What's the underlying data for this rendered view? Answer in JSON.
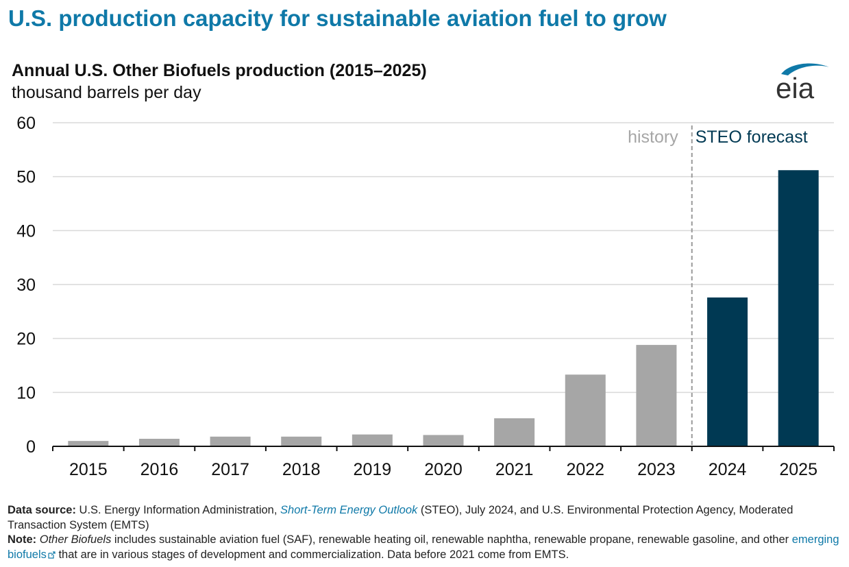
{
  "headline": "U.S. production capacity for sustainable aviation fuel to grow",
  "chart_data": {
    "type": "bar",
    "title": "Annual U.S. Other Biofuels production (2015–2025)",
    "subtitle": "thousand barrels per day",
    "categories": [
      "2015",
      "2016",
      "2017",
      "2018",
      "2019",
      "2020",
      "2021",
      "2022",
      "2023",
      "2024",
      "2025"
    ],
    "values": [
      1.0,
      1.4,
      1.8,
      1.8,
      2.2,
      2.1,
      5.2,
      13.3,
      18.8,
      27.6,
      51.2
    ],
    "ylim": [
      0,
      60
    ],
    "yticks": [
      "0",
      "10",
      "20",
      "30",
      "40",
      "50",
      "60"
    ],
    "ytick_values": [
      0,
      10,
      20,
      30,
      40,
      50,
      60
    ],
    "forecast_start_index": 9,
    "history_label": "history",
    "forecast_label": "STEO forecast",
    "colors": {
      "history": "#a6a6a6",
      "forecast": "#003953",
      "grid": "#d9d9d9",
      "divider": "#999999"
    },
    "grid": true,
    "legend": "none"
  },
  "logo": {
    "text": "eia",
    "icon": "eia-logo"
  },
  "footer": {
    "source_label": "Data source:",
    "source_text_1": "U.S. Energy Information Administration,",
    "source_link": "Short-Term Energy Outlook",
    "source_text_2": "(STEO), July 2024, and U.S. Environmental Protection Agency, Moderated Transaction System (EMTS)",
    "note_label": "Note:",
    "note_italic": "Other Biofuels",
    "note_text_1": "includes sustainable aviation fuel (SAF), renewable heating oil, renewable naphtha, renewable propane, renewable gasoline, and other",
    "note_link": "emerging biofuels",
    "note_text_2": "that are in various stages of development and commercialization. Data before 2021 come from EMTS."
  }
}
